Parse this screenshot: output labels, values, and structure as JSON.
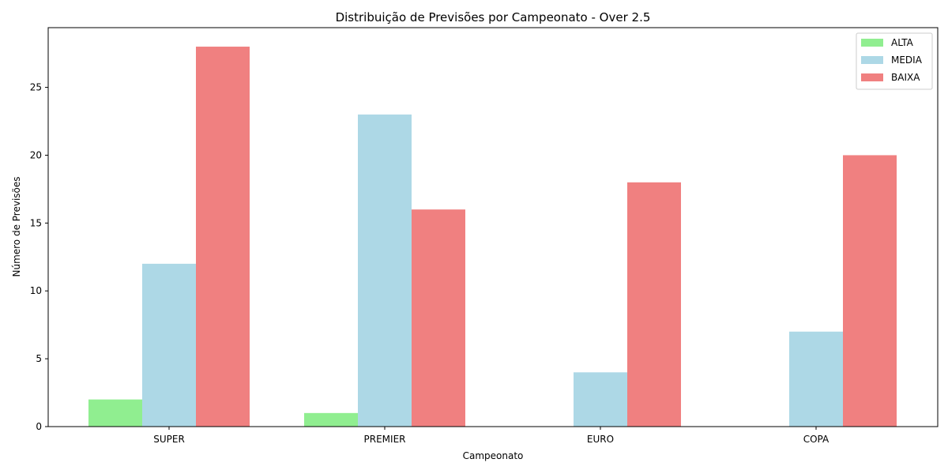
{
  "chart_data": {
    "type": "bar",
    "title": "Distribuição de Previsões por Campeonato - Over 2.5",
    "xlabel": "Campeonato",
    "ylabel": "Número de Previsões",
    "categories": [
      "SUPER",
      "PREMIER",
      "EURO",
      "COPA"
    ],
    "series": [
      {
        "name": "ALTA",
        "color": "#90ee90",
        "values": [
          2,
          1,
          0,
          0
        ]
      },
      {
        "name": "MEDIA",
        "color": "#add8e6",
        "values": [
          12,
          23,
          4,
          7
        ]
      },
      {
        "name": "BAIXA",
        "color": "#f08080",
        "values": [
          28,
          16,
          18,
          20
        ]
      }
    ],
    "ylim": [
      0,
      29.4
    ],
    "yticks": [
      0,
      5,
      10,
      15,
      20,
      25
    ],
    "grid": false,
    "legend_position": "top-right"
  }
}
